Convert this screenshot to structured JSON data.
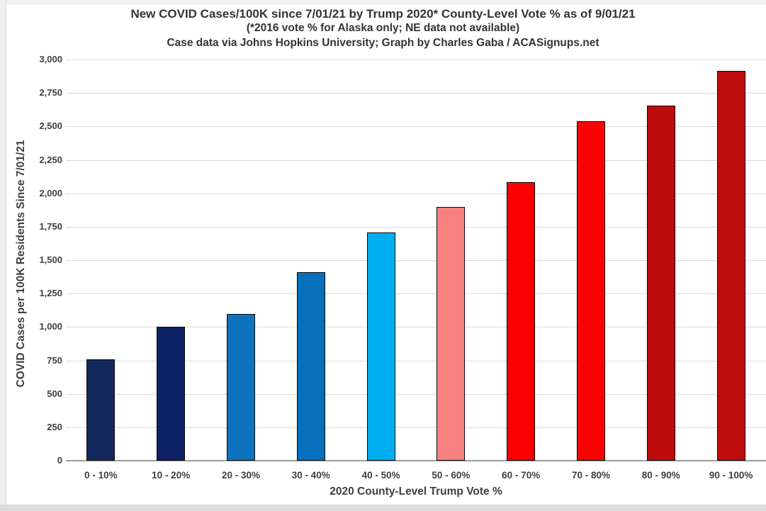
{
  "chart_data": {
    "type": "bar",
    "title": "New COVID Cases/100K since 7/01/21 by Trump 2020* County-Level Vote % as of 9/01/21 (*2016 vote % for Alaska only; NE data not available) Case data via Johns Hopkins University; Graph by Charles Gaba / ACASignups.net",
    "title_lines": [
      "New COVID Cases/100K since 7/01/21 by Trump 2020* County-Level Vote % as of 9/01/21",
      "(*2016 vote % for Alaska only; NE data not available)",
      "Case data via Johns Hopkins University; Graph by Charles Gaba / ACASignups.net"
    ],
    "xlabel": "2020 County-Level Trump Vote %",
    "ylabel": "COVID Cases per 100K Residents Since 7/01/21",
    "categories": [
      "0 - 10%",
      "10 - 20%",
      "20 - 30%",
      "30 - 40%",
      "40 - 50%",
      "50 - 60%",
      "60 - 70%",
      "70 - 80%",
      "80 - 90%",
      "90 - 100%"
    ],
    "values": [
      760,
      1000,
      1095,
      1410,
      1705,
      1900,
      2085,
      2540,
      2655,
      2915
    ],
    "bar_colors": [
      "#13295E",
      "#0C2166",
      "#0D73BE",
      "#0670BD",
      "#00AEEF",
      "#F98080",
      "#FB0000",
      "#F90101",
      "#BE0B0B",
      "#BF0D0D"
    ],
    "ylim": [
      0,
      3000
    ],
    "ytick_step": 250,
    "ytick_labels": [
      "0",
      "250",
      "500",
      "750",
      "1,000",
      "1,250",
      "1,500",
      "1,750",
      "2,000",
      "2,250",
      "2,500",
      "2,750",
      "3,000"
    ],
    "grid": "horizontal",
    "legend": "none",
    "gridline_color": "#D9D9D9",
    "axis_text_color": "#3F3F3F",
    "title_text_color": "#333333"
  }
}
